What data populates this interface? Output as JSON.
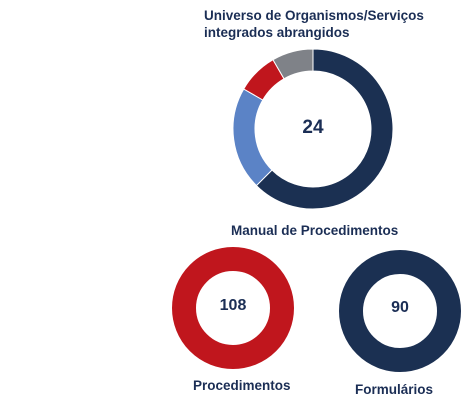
{
  "colors": {
    "navy": "#1b3052",
    "blue": "#5b83c6",
    "red": "#c0161d",
    "gray": "#7f8288",
    "text": "#1b2e55"
  },
  "chart_data": [
    {
      "type": "pie",
      "title": "Universo de Organismos/Serviços integrados abrangidos",
      "center_label": "24",
      "slices": [
        {
          "value": 15,
          "color": "#1b3052"
        },
        {
          "value": 5,
          "color": "#5b83c6"
        },
        {
          "value": 2,
          "color": "#c0161d"
        },
        {
          "value": 2,
          "color": "#7f8288"
        }
      ]
    },
    {
      "type": "pie",
      "title": "Manual de Procedimentos",
      "subcharts": [
        {
          "label": "Procedimentos",
          "center_label": "108",
          "color": "#c0161d",
          "value": 108
        },
        {
          "label": "Formulários",
          "center_label": "90",
          "color": "#1b3052",
          "value": 90
        }
      ]
    }
  ]
}
